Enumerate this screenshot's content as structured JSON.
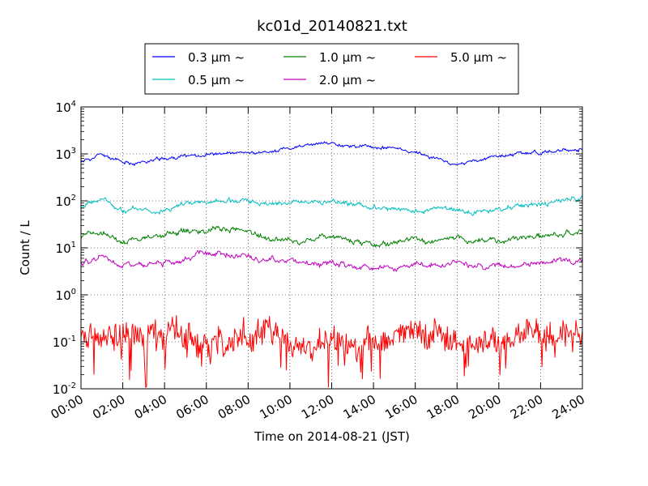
{
  "chart_data": {
    "type": "line",
    "title": "kc01d_20140821.txt",
    "xlabel": "Time on 2014-08-21 (JST)",
    "ylabel": "Count / L",
    "y_scale": "log",
    "ylim": [
      0.01,
      10000
    ],
    "y_ticks": [
      {
        "value": 0.01,
        "base": "10",
        "exp": "-2"
      },
      {
        "value": 0.1,
        "base": "10",
        "exp": "-1"
      },
      {
        "value": 1,
        "base": "10",
        "exp": "0"
      },
      {
        "value": 10,
        "base": "10",
        "exp": "1"
      },
      {
        "value": 100,
        "base": "10",
        "exp": "2"
      },
      {
        "value": 1000,
        "base": "10",
        "exp": "3"
      },
      {
        "value": 10000,
        "base": "10",
        "exp": "4"
      }
    ],
    "x_ticks": [
      "00:00",
      "02:00",
      "04:00",
      "06:00",
      "08:00",
      "10:00",
      "12:00",
      "14:00",
      "16:00",
      "18:00",
      "20:00",
      "22:00",
      "24:00"
    ],
    "xlim": [
      "00:00",
      "24:00"
    ],
    "grid": true,
    "legend_position": "top-center",
    "x": [
      "00:00",
      "01:00",
      "02:00",
      "03:00",
      "04:00",
      "05:00",
      "06:00",
      "07:00",
      "08:00",
      "09:00",
      "10:00",
      "11:00",
      "12:00",
      "13:00",
      "14:00",
      "15:00",
      "16:00",
      "17:00",
      "18:00",
      "19:00",
      "20:00",
      "21:00",
      "22:00",
      "23:00",
      "24:00"
    ],
    "series": [
      {
        "name": "0.3 μm ~",
        "color": "#0000ff",
        "values": [
          700,
          950,
          620,
          680,
          780,
          900,
          1000,
          1000,
          1000,
          1100,
          1300,
          1500,
          1700,
          1500,
          1400,
          1300,
          1100,
          800,
          580,
          700,
          900,
          1000,
          1100,
          1100,
          1300
        ]
      },
      {
        "name": "0.5 μm ~",
        "color": "#00bfbf",
        "values": [
          70,
          110,
          60,
          70,
          65,
          80,
          95,
          100,
          100,
          90,
          95,
          100,
          95,
          80,
          70,
          65,
          60,
          65,
          60,
          60,
          70,
          80,
          90,
          100,
          110
        ]
      },
      {
        "name": "1.0 μm ~",
        "color": "#008000",
        "values": [
          15,
          20,
          14,
          17,
          18,
          22,
          25,
          25,
          23,
          16,
          15,
          14,
          18,
          14,
          12,
          13,
          15,
          14,
          16,
          15,
          14,
          15,
          16,
          18,
          20
        ]
      },
      {
        "name": "2.0 μm ~",
        "color": "#bf00bf",
        "values": [
          5,
          5.5,
          4,
          5,
          5,
          6,
          7,
          7,
          6.5,
          6,
          5.5,
          5,
          4.5,
          4,
          3.5,
          3.5,
          4,
          4.5,
          5,
          4.5,
          4,
          4.5,
          5,
          5.5,
          6
        ]
      },
      {
        "name": "5.0 μm ~",
        "color": "#ff0000",
        "values": [
          0.12,
          0.1,
          0.11,
          0.09,
          0.12,
          0.11,
          0.1,
          0.12,
          0.11,
          0.12,
          0.1,
          0.11,
          0.09,
          0.1,
          0.09,
          0.11,
          0.13,
          0.15,
          0.14,
          0.11,
          0.1,
          0.12,
          0.11,
          0.12,
          0.13
        ]
      }
    ]
  }
}
